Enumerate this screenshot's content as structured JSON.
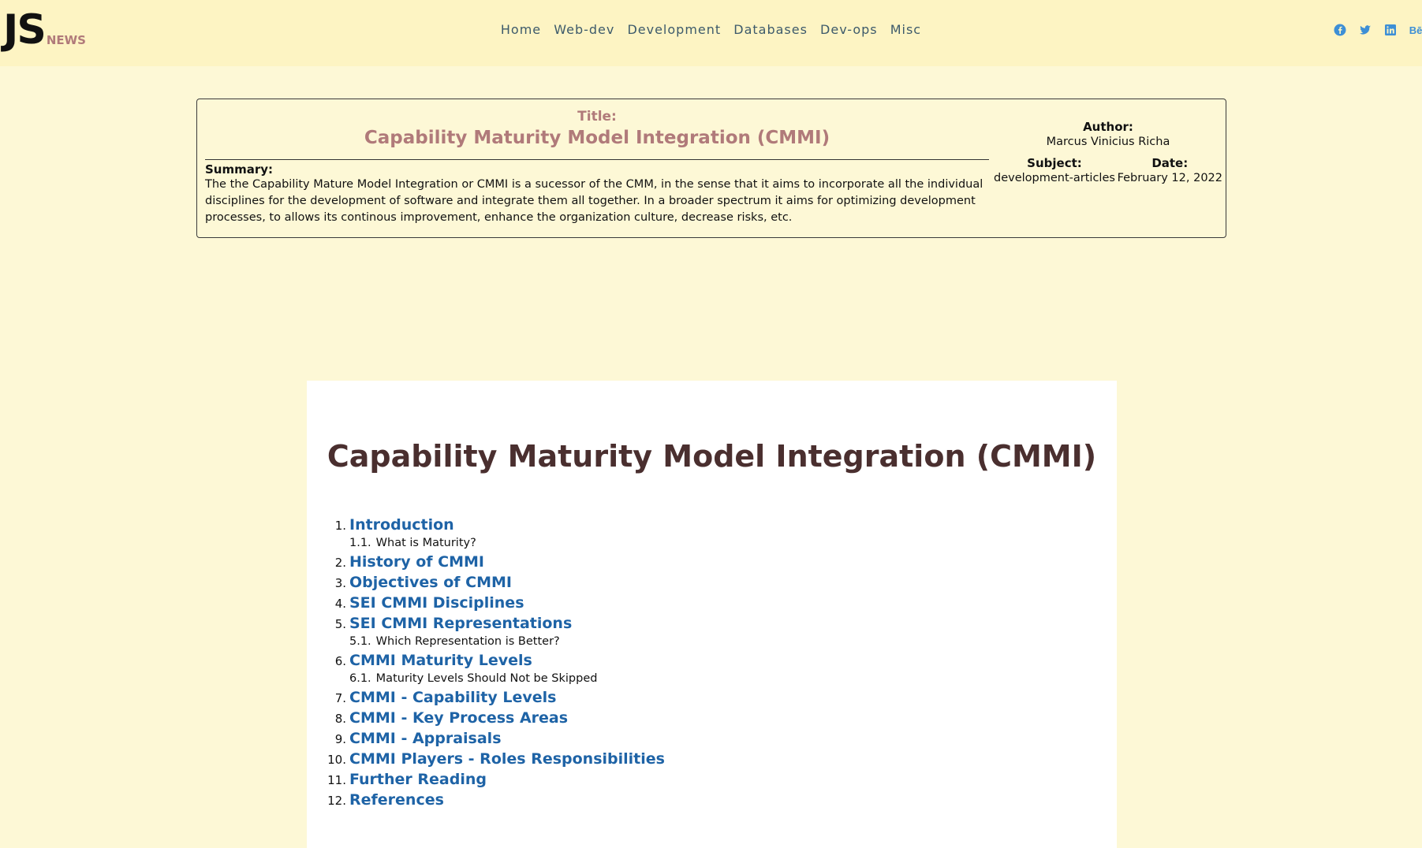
{
  "logo": {
    "main": "JS",
    "sub": "NEWS"
  },
  "nav": {
    "items": [
      "Home",
      "Web-dev",
      "Development",
      "Databases",
      "Dev-ops",
      "Misc"
    ]
  },
  "social": {
    "icons": [
      "facebook-icon",
      "twitter-icon",
      "linkedin-icon",
      "behance-icon"
    ],
    "behance_text": "Bē",
    "color": "#3d8fd6"
  },
  "card": {
    "title_label": "Title:",
    "title": "Capability Maturity Model Integration (CMMI)",
    "summary_label": "Summary:",
    "summary": "The the Capability Mature Model Integration or CMMI is a sucessor of the CMM, in the sense that it aims to incorporate all the individual disciplines for the development of software and integrate them all together. In a broader spectrum it aims for optimizing development processes, to allows its continous improvement, enhance the organization culture, decrease risks, etc.",
    "author_label": "Author:",
    "author": "Marcus Vinicius Richa",
    "subject_label": "Subject:",
    "subject": "development-articles",
    "date_label": "Date:",
    "date": "February 12, 2022"
  },
  "article": {
    "title": "Capability Maturity Model Integration (CMMI)",
    "toc": [
      {
        "num": "1.",
        "label": "Introduction",
        "subs": [
          {
            "num": "1.1.",
            "label": "What is Maturity?"
          }
        ]
      },
      {
        "num": "2.",
        "label": "History of CMMI",
        "subs": []
      },
      {
        "num": "3.",
        "label": "Objectives of CMMI",
        "subs": []
      },
      {
        "num": "4.",
        "label": "SEI CMMI Disciplines",
        "subs": []
      },
      {
        "num": "5.",
        "label": "SEI CMMI Representations",
        "subs": [
          {
            "num": "5.1.",
            "label": "Which Representation is Better?"
          }
        ]
      },
      {
        "num": "6.",
        "label": "CMMI Maturity Levels",
        "subs": [
          {
            "num": "6.1.",
            "label": "Maturity Levels Should Not be Skipped"
          }
        ]
      },
      {
        "num": "7.",
        "label": "CMMI - Capability Levels",
        "subs": []
      },
      {
        "num": "8.",
        "label": "CMMI - Key Process Areas",
        "subs": []
      },
      {
        "num": "9.",
        "label": "CMMI - Appraisals",
        "subs": []
      },
      {
        "num": "10.",
        "label": "CMMI Players - Roles Responsibilities",
        "subs": []
      },
      {
        "num": "11.",
        "label": "Further Reading",
        "subs": []
      },
      {
        "num": "12.",
        "label": "References",
        "subs": []
      }
    ]
  },
  "colors": {
    "page_bg": "#fdf8d6",
    "header_bg": "#fdf4c3",
    "title_accent": "#b07a7a",
    "link": "#1e63a6",
    "article_title": "#4a2f2f"
  }
}
